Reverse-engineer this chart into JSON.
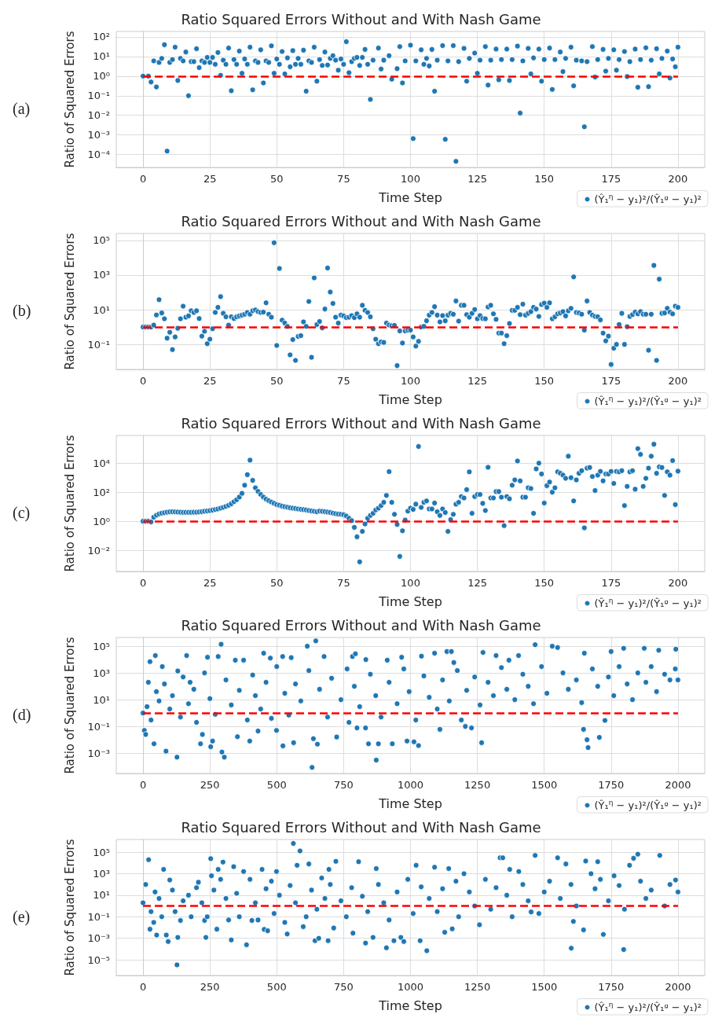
{
  "chart_data": [
    {
      "type": "scatter",
      "title": "Ratio Squared Errors Without and With Nash Game",
      "xlabel": "Time Step",
      "ylabel": "Ratio of Squared Errors",
      "annotations": [
        "(a)"
      ],
      "log": "y",
      "grid": true,
      "legend": "bottom right",
      "marker": "circle",
      "xlim": [
        -10,
        210
      ],
      "xticks": [
        0,
        25,
        50,
        75,
        100,
        125,
        150,
        175,
        200
      ],
      "ylim": [
        2.2e-05,
        190
      ],
      "yticks": [
        {
          "value": 0.0001,
          "label": "10⁻⁴"
        },
        {
          "value": 0.001,
          "label": "10⁻³"
        },
        {
          "value": 0.01,
          "label": "10⁻²"
        },
        {
          "value": 0.1,
          "label": "10⁻¹"
        },
        {
          "value": 1,
          "label": "10⁰"
        },
        {
          "value": 10,
          "label": "10¹"
        },
        {
          "value": 100,
          "label": "10²"
        }
      ],
      "ref_lines": [
        {
          "axis": "y",
          "value": 1,
          "color": "#ff0000",
          "line_style": "dashed"
        }
      ],
      "series": [
        {
          "name": "(Ŷ₁$^{η}$ − y₁)²/(Ŷ₁ᵍ − y₁)²",
          "color": "#1f77b4",
          "x": [
            0,
            2,
            3,
            4,
            5,
            6,
            7,
            8,
            9,
            10,
            11,
            12,
            13,
            14,
            15,
            16,
            17,
            18,
            19,
            20,
            21,
            22,
            23,
            24,
            25,
            26,
            27,
            28,
            29,
            30,
            31,
            32,
            33,
            34,
            35,
            36,
            37,
            38,
            39,
            40,
            41,
            42,
            43,
            44,
            45,
            46,
            47,
            48,
            49,
            50,
            51,
            52,
            53,
            54,
            55,
            56,
            57,
            58,
            59,
            60,
            61,
            62,
            63,
            64,
            65,
            66,
            67,
            68,
            69,
            70,
            71,
            72,
            73,
            74,
            75,
            76,
            77,
            78,
            79,
            80,
            81,
            82,
            83,
            84,
            85,
            86,
            88,
            89,
            90,
            92,
            93,
            95,
            96,
            97,
            98,
            100,
            101,
            102,
            104,
            105,
            106,
            107,
            108,
            109,
            110,
            112,
            113,
            114,
            116,
            117,
            118,
            120,
            121,
            122,
            124,
            125,
            126,
            128,
            129,
            130,
            132,
            133,
            134,
            136,
            137,
            138,
            140,
            141,
            142,
            144,
            145,
            146,
            148,
            149,
            150,
            152,
            153,
            154,
            156,
            157,
            158,
            160,
            161,
            162,
            164,
            165,
            166,
            168,
            169,
            170,
            172,
            173,
            174,
            176,
            177,
            178,
            180,
            181,
            182,
            184,
            185,
            186,
            188,
            189,
            190,
            192,
            193,
            194,
            196,
            197,
            198,
            199,
            200
          ],
          "values": [
            1,
            1,
            0.5,
            6,
            0.28,
            5,
            8,
            40,
            0.00015,
            5,
            7,
            30,
            0.6,
            8,
            6,
            17,
            0.1,
            5.5,
            5.5,
            25,
            2.7,
            6,
            5,
            9,
            5,
            9,
            4,
            16,
            1.1,
            6.5,
            4,
            27,
            0.18,
            7,
            4,
            19,
            1.4,
            7.5,
            4,
            30,
            0.2,
            6,
            5,
            22,
            0.45,
            6,
            5,
            35,
            1.4,
            7.5,
            4,
            18,
            1.3,
            8.5,
            3,
            20,
            4,
            8,
            4,
            21,
            0.17,
            6,
            5,
            30,
            0.55,
            7,
            3.5,
            17,
            3.7,
            8,
            11,
            6.5,
            2,
            7.5,
            4,
            57,
            1.5,
            5.5,
            8,
            9,
            3.5,
            9,
            23,
            4,
            0.065,
            6.5,
            27,
            2.3,
            6.5,
            11,
            0.7,
            2.4,
            32,
            0.45,
            6,
            38,
            0.00065,
            6,
            22,
            4,
            8,
            3.3,
            23,
            0.17,
            6.5,
            36,
            0.0006,
            6,
            36,
            4.5e-05,
            5.5,
            26,
            0.55,
            8,
            15,
            1.4,
            6.5,
            32,
            0.35,
            6.5,
            24,
            0.65,
            7,
            24,
            0.6,
            7,
            34,
            0.013,
            6,
            26,
            1.3,
            8.5,
            24,
            0.55,
            7,
            27,
            0.21,
            7,
            17,
            1.7,
            8,
            30,
            0.32,
            6.5,
            6,
            0.0026,
            5.5,
            32,
            0.9,
            7,
            23,
            1.8,
            8,
            22,
            2,
            7,
            18,
            0.95,
            5.5,
            24,
            0.27,
            7,
            28,
            0.29,
            6.5,
            25,
            1.3,
            8,
            19,
            0.8,
            7.5,
            3,
            30
          ]
        }
      ]
    },
    {
      "type": "scatter",
      "title": "Ratio Squared Errors Without and With Nash Game",
      "xlabel": "Time Step",
      "ylabel": "Ratio of Squared Errors",
      "annotations": [
        "(b)"
      ],
      "log": "y",
      "grid": true,
      "legend": "bottom right",
      "marker": "circle",
      "xlim": [
        -10,
        210
      ],
      "xticks": [
        0,
        25,
        50,
        75,
        100,
        125,
        150,
        175,
        200
      ],
      "ylim": [
        0.0036,
        250000
      ],
      "yticks": [
        {
          "value": 0.1,
          "label": "10⁻¹"
        },
        {
          "value": 10,
          "label": "10¹"
        },
        {
          "value": 1000,
          "label": "10³"
        },
        {
          "value": 100000,
          "label": "10⁵"
        }
      ],
      "ref_lines": [
        {
          "axis": "y",
          "value": 1,
          "color": "#ff0000",
          "line_style": "dashed"
        }
      ],
      "series": [
        {
          "name": "(Ŷ₁$^{η}$ − y₁)²/(Ŷ₁ᵍ − y₁)²",
          "color": "#1f77b4",
          "x": [
            0,
            1,
            2,
            3,
            4,
            5,
            6,
            7,
            8,
            9,
            10,
            11,
            12,
            13,
            14,
            15,
            16,
            17,
            18,
            19,
            20,
            21,
            22,
            23,
            24,
            25,
            26,
            27,
            28,
            29,
            30,
            31,
            32,
            33,
            34,
            35,
            36,
            37,
            38,
            39,
            40,
            41,
            42,
            43,
            44,
            45,
            46,
            47,
            48,
            49,
            50,
            51,
            52,
            53,
            54,
            55,
            56,
            57,
            58,
            59,
            60,
            61,
            62,
            63,
            64,
            65,
            66,
            67,
            68,
            69,
            70,
            71,
            72,
            73,
            74,
            75,
            76,
            77,
            78,
            79,
            80,
            81,
            82,
            83,
            84,
            85,
            86,
            87,
            88,
            89,
            90,
            91,
            92,
            93,
            94,
            95,
            96,
            97,
            98,
            99,
            100,
            101,
            102,
            103,
            104,
            105,
            106,
            107,
            108,
            109,
            110,
            111,
            112,
            113,
            114,
            115,
            116,
            117,
            118,
            119,
            120,
            121,
            122,
            123,
            124,
            125,
            126,
            127,
            128,
            129,
            130,
            131,
            132,
            133,
            134,
            135,
            136,
            137,
            138,
            139,
            140,
            141,
            142,
            143,
            144,
            145,
            146,
            147,
            148,
            149,
            150,
            151,
            152,
            153,
            154,
            155,
            156,
            157,
            158,
            159,
            160,
            161,
            162,
            163,
            164,
            165,
            166,
            167,
            168,
            169,
            170,
            171,
            172,
            173,
            174,
            175,
            176,
            177,
            178,
            179,
            180,
            181,
            182,
            183,
            184,
            185,
            186,
            187,
            188,
            189,
            190,
            191,
            192,
            193,
            194,
            195,
            196,
            197,
            198,
            199,
            200
          ],
          "values": [
            1,
            1,
            1,
            1,
            1.3,
            5,
            38,
            6.5,
            3,
            0.23,
            0.5,
            0.05,
            0.27,
            0.85,
            3,
            16,
            3.7,
            4.4,
            8.7,
            7,
            8.7,
            3.1,
            0.3,
            0.57,
            0.11,
            0.2,
            0.8,
            7,
            13.7,
            57,
            6.2,
            3.9,
            1.3,
            3.9,
            3.1,
            3.9,
            4.4,
            4.9,
            5.5,
            7,
            5.5,
            8.7,
            9.7,
            7.8,
            7,
            7.3,
            25,
            5.5,
            3.7,
            73000,
            0.087,
            2400,
            2.5,
            1.7,
            1.1,
            0.025,
            0.19,
            0.012,
            0.29,
            0.32,
            2,
            1.1,
            30,
            0.018,
            690,
            1.4,
            2.1,
            0.9,
            11,
            2550,
            105,
            23,
            3.7,
            1.7,
            4.9,
            4.4,
            3.5,
            3.7,
            4.6,
            3.5,
            5.8,
            3.7,
            18,
            9.2,
            7,
            3.9,
            0.8,
            0.2,
            0.11,
            0.14,
            0.13,
            1.7,
            1.3,
            1.2,
            1.25,
            0.006,
            0.6,
            0.12,
            0.6,
            0.67,
            0.67,
            0.27,
            0.08,
            0.15,
            1,
            1.1,
            2.3,
            4.9,
            7,
            15,
            4.9,
            2,
            4.6,
            2.3,
            4.9,
            6.2,
            5.5,
            32,
            2.2,
            18,
            18,
            5.2,
            3.7,
            6.2,
            10.3,
            3,
            4.6,
            3.1,
            3,
            14.5,
            18,
            5.8,
            2.8,
            0.45,
            0.45,
            0.11,
            0.32,
            1.6,
            9.2,
            9.2,
            13.7,
            5.2,
            21,
            4.9,
            6.2,
            7.8,
            13.7,
            10.9,
            4.1,
            20,
            24,
            13.7,
            25,
            3,
            3.9,
            5.8,
            6.5,
            7.8,
            4.4,
            8.7,
            12,
            780,
            7,
            6.5,
            5.5,
            0.67,
            32,
            7,
            4.9,
            4.1,
            3.9,
            2.6,
            0.45,
            0.16,
            0.3,
            0.007,
            0.06,
            0.1,
            1.4,
            6.2,
            0.1,
            1.05,
            4.1,
            5.2,
            7.3,
            5.8,
            7.8,
            5.5,
            5.5,
            0.046,
            5.5,
            3600,
            0.012,
            580,
            6.2,
            6.5,
            12,
            7.3,
            5.8,
            16,
            13.7
          ]
        }
      ]
    },
    {
      "type": "scatter",
      "title": "Ratio Squared Errors Without and With Nash Game",
      "xlabel": "Time Step",
      "ylabel": "Ratio of Squared Errors",
      "annotations": [
        "(c)"
      ],
      "log": "y",
      "grid": true,
      "legend": "bottom right",
      "marker": "circle",
      "xlim": [
        -10,
        210
      ],
      "xticks": [
        0,
        25,
        50,
        75,
        100,
        125,
        150,
        175,
        200
      ],
      "ylim": [
        0.00035,
        800000
      ],
      "yticks": [
        {
          "value": 0.01,
          "label": "10⁻²"
        },
        {
          "value": 1,
          "label": "10⁰"
        },
        {
          "value": 100,
          "label": "10²"
        },
        {
          "value": 10000,
          "label": "10⁴"
        }
      ],
      "ref_lines": [
        {
          "axis": "y",
          "value": 1,
          "color": "#ff0000",
          "line_style": "dashed"
        }
      ],
      "series": [
        {
          "name": "(Ŷ₁$^{η}$ − y₁)²/(Ŷ₁ᵍ − y₁)²",
          "color": "#1f77b4",
          "x": [
            0,
            1,
            2,
            3,
            4,
            5,
            6,
            7,
            8,
            9,
            10,
            11,
            12,
            13,
            14,
            15,
            16,
            17,
            18,
            19,
            20,
            21,
            22,
            23,
            24,
            25,
            26,
            27,
            28,
            29,
            30,
            31,
            32,
            33,
            34,
            35,
            36,
            37,
            38,
            39,
            40,
            41,
            42,
            43,
            44,
            45,
            46,
            47,
            48,
            49,
            50,
            51,
            52,
            53,
            54,
            55,
            56,
            57,
            58,
            59,
            60,
            61,
            62,
            63,
            64,
            65,
            66,
            67,
            68,
            69,
            70,
            71,
            72,
            73,
            74,
            75,
            76,
            77,
            78,
            79,
            80,
            81,
            82,
            83,
            84,
            85,
            86,
            87,
            88,
            89,
            90,
            91,
            92,
            93,
            94,
            95,
            96,
            97,
            98,
            99,
            100,
            101,
            102,
            103,
            104,
            105,
            106,
            107,
            108,
            109,
            110,
            111,
            112,
            113,
            114,
            115,
            116,
            117,
            118,
            119,
            120,
            121,
            122,
            123,
            124,
            125,
            126,
            127,
            128,
            129,
            130,
            131,
            132,
            133,
            134,
            135,
            136,
            137,
            138,
            139,
            140,
            141,
            142,
            143,
            144,
            145,
            146,
            147,
            148,
            149,
            150,
            151,
            152,
            153,
            154,
            155,
            156,
            157,
            158,
            159,
            160,
            161,
            162,
            163,
            164,
            165,
            166,
            167,
            168,
            169,
            170,
            171,
            172,
            173,
            174,
            175,
            176,
            177,
            178,
            179,
            180,
            181,
            182,
            183,
            184,
            185,
            186,
            187,
            188,
            189,
            190,
            191,
            192,
            193,
            194,
            195,
            196,
            197,
            198,
            199,
            200
          ],
          "values": [
            1,
            1,
            1,
            0.9,
            1.9,
            2.6,
            3.2,
            3.6,
            3.9,
            4.2,
            4.4,
            4.5,
            4.4,
            4.3,
            4.2,
            4.1,
            4.1,
            4.1,
            4.1,
            4.2,
            4.2,
            4.4,
            4.6,
            4.9,
            5.1,
            5.4,
            5.9,
            6.4,
            7,
            8,
            9,
            10.5,
            12.6,
            16,
            22,
            30,
            46,
            83,
            300,
            1600,
            16000,
            650,
            200,
            113,
            70,
            46,
            33,
            26,
            21,
            17,
            14,
            12.5,
            11,
            10,
            9.2,
            8.5,
            8,
            7.5,
            7,
            6.6,
            6.3,
            6,
            5.5,
            5.1,
            4.8,
            4.5,
            5,
            4.8,
            4.6,
            4.3,
            4,
            3.6,
            3.3,
            3.1,
            3,
            2.8,
            2.3,
            1.6,
            1.1,
            0.38,
            0.085,
            0.0016,
            0.2,
            0.65,
            1.6,
            2.5,
            3.5,
            6,
            8,
            12,
            20,
            60,
            2600,
            20,
            3,
            0.6,
            0.0038,
            0.22,
            1.2,
            5,
            8,
            6.5,
            15,
            140000,
            9,
            20,
            25,
            7,
            7,
            18,
            4.5,
            2.5,
            7,
            4,
            0.2,
            1.3,
            3,
            15,
            20,
            50,
            40,
            150,
            2500,
            3.5,
            50,
            70,
            70,
            17,
            5.5,
            5200,
            40,
            40,
            110,
            110,
            45,
            0.5,
            50,
            35,
            300,
            700,
            14000,
            600,
            45,
            45,
            200,
            180,
            3.5,
            4000,
            10000,
            1800,
            18,
            280,
            500,
            100,
            200,
            2500,
            2000,
            1500,
            900,
            30000,
            1000,
            25,
            700,
            2000,
            3000,
            0.35,
            4500,
            5000,
            1200,
            130,
            1500,
            2700,
            600,
            1800,
            1800,
            2700,
            400,
            2700,
            2500,
            3000,
            12,
            250,
            2500,
            3000,
            160,
            100000,
            40000,
            250,
            900,
            4500,
            30000,
            200000,
            2000,
            5500,
            5000,
            60,
            2500,
            1500,
            15000,
            14,
            2800
          ]
        }
      ]
    },
    {
      "type": "scatter",
      "title": "Ratio Squared Errors Without and With Nash Game",
      "xlabel": "Time Step",
      "ylabel": "Ratio of Squared Errors",
      "annotations": [
        "(d)"
      ],
      "log": "y",
      "grid": true,
      "legend": "bottom right",
      "marker": "circle",
      "xlim": [
        -100,
        2100
      ],
      "xticks": [
        0,
        250,
        500,
        750,
        1000,
        1250,
        1500,
        1750,
        2000
      ],
      "ylim": [
        3e-05,
        450000
      ],
      "yticks": [
        {
          "value": 0.001,
          "label": "10⁻³"
        },
        {
          "value": 0.1,
          "label": "10⁻¹"
        },
        {
          "value": 10,
          "label": "10¹"
        },
        {
          "value": 1000,
          "label": "10³"
        },
        {
          "value": 100000,
          "label": "10⁵"
        }
      ],
      "ref_lines": [
        {
          "axis": "y",
          "value": 1,
          "color": "#ff0000",
          "line_style": "dashed"
        }
      ],
      "series": [
        {
          "name": "(Ŷ₁$^{η}$ − y₁)²/(Ŷ₁ᵍ − y₁)²",
          "color": "#1f77b4",
          "x": [
            0,
            5,
            10,
            15,
            20,
            26,
            30,
            41,
            46,
            50,
            60,
            72,
            80,
            86,
            100,
            110,
            127,
            130,
            140,
            150,
            163,
            170,
            176,
            190,
            200,
            215,
            222,
            230,
            241,
            250,
            253,
            260,
            270,
            281,
            292,
            295,
            304,
            310,
            330,
            345,
            353,
            360,
            376,
            390,
            399,
            410,
            420,
            430,
            440,
            451,
            460,
            476,
            480,
            499,
            500,
            522,
            523,
            530,
            545,
            554,
            563,
            570,
            590,
            614,
            620,
            632,
            637,
            646,
            652,
            660,
            677,
            690,
            705,
            724,
            740,
            763,
            770,
            783,
            790,
            794,
            800,
            810,
            832,
            833,
            843,
            850,
            870,
            872,
            880,
            890,
            913,
            920,
            932,
            950,
            967,
            975,
            987,
            995,
            1013,
            1020,
            1030,
            1041,
            1050,
            1070,
            1090,
            1100,
            1110,
            1120,
            1136,
            1145,
            1153,
            1162,
            1175,
            1190,
            1205,
            1210,
            1228,
            1240,
            1260,
            1266,
            1271,
            1290,
            1310,
            1320,
            1340,
            1360,
            1368,
            1390,
            1404,
            1420,
            1440,
            1460,
            1466,
            1490,
            1510,
            1530,
            1550,
            1570,
            1590,
            1620,
            1640,
            1647,
            1650,
            1660,
            1664,
            1680,
            1700,
            1706,
            1727,
            1740,
            1750,
            1760,
            1780,
            1797,
            1810,
            1830,
            1850,
            1874,
            1880,
            1900,
            1920,
            1928,
            1950,
            1970,
            1990,
            1992,
            2000
          ],
          "values": [
            1,
            0.05,
            0.025,
            3,
            200,
            7000,
            0.3,
            0.005,
            20000,
            40,
            8,
            3000,
            150,
            0.0014,
            2,
            20,
            0.0005,
            1400,
            0.5,
            500,
            20000,
            5,
            200,
            60,
            0.2,
            0.005,
            0.025,
            1000,
            15000,
            12,
            0.003,
            0.008,
            0.8,
            17000,
            140000,
            0.0012,
            0.0005,
            300,
            4,
            9000,
            0.017,
            50,
            9000,
            0.3,
            0.008,
            700,
            20,
            0.045,
            2,
            30000,
            200,
            13000,
            0.4,
            0.05,
            3000,
            17000,
            0.0035,
            30,
            0.7,
            14000,
            0.006,
            150,
            8,
            100000,
            1500,
            8.5e-05,
            0.012,
            250000,
            0.0047,
            60,
            17000,
            0.5,
            400,
            0.016,
            10,
            2000,
            0.2,
            17000,
            100,
            27000,
            0.077,
            3,
            0.077,
            10000,
            0.005,
            800,
            20,
            0.0003,
            0.005,
            0.5,
            9000,
            200,
            0.005,
            5,
            15000,
            2000,
            0.008,
            40,
            0.007,
            0.3,
            0.0037,
            18000,
            600,
            15,
            30000,
            2,
            0.06,
            300,
            40000,
            8,
            40000,
            6000,
            1500,
            0.3,
            0.1,
            50,
            0.077,
            500,
            4,
            0.006,
            34000,
            200,
            20,
            20000,
            2500,
            60,
            9000,
            10,
            20000,
            800,
            100,
            5,
            130000,
            3000,
            30,
            100000,
            80000,
            1000,
            60,
            300,
            6,
            0.06,
            30000,
            0.01,
            0.0026,
            2000,
            100,
            0.015,
            0.28,
            500,
            40000,
            20,
            3000,
            70000,
            150,
            10,
            1000,
            70000,
            200,
            3000,
            40,
            50000,
            800,
            300,
            2000,
            60000,
            300
          ]
        }
      ]
    },
    {
      "type": "scatter",
      "title": "Ratio Squared Errors Without and With Nash Game",
      "xlabel": "Time Step",
      "ylabel": "Ratio of Squared Errors",
      "annotations": [
        "(e)"
      ],
      "log": "y",
      "grid": true,
      "legend": "bottom right",
      "marker": "circle",
      "xlim": [
        -100,
        2100
      ],
      "xticks": [
        0,
        250,
        500,
        750,
        1000,
        1250,
        1500,
        1750,
        2000
      ],
      "ylim": [
        3.5e-07,
        1500000
      ],
      "yticks": [
        {
          "value": 1e-05,
          "label": "10⁻⁵"
        },
        {
          "value": 0.001,
          "label": "10⁻³"
        },
        {
          "value": 0.1,
          "label": "10⁻¹"
        },
        {
          "value": 10,
          "label": "10¹"
        },
        {
          "value": 1000,
          "label": "10³"
        },
        {
          "value": 100000,
          "label": "10⁵"
        }
      ],
      "ref_lines": [
        {
          "axis": "y",
          "value": 1,
          "color": "#ff0000",
          "line_style": "dashed"
        }
      ],
      "series": [
        {
          "name": "(Ŷ₁$^{η}$ − y₁)²/(Ŷ₁ᵍ − y₁)²",
          "color": "#1f77b4",
          "x": [
            0,
            10,
            21,
            26,
            30,
            40,
            45,
            51,
            60,
            70,
            77,
            87,
            94,
            100,
            110,
            120,
            127,
            130,
            140,
            150,
            170,
            180,
            200,
            207,
            220,
            230,
            235,
            240,
            253,
            256,
            265,
            276,
            281,
            290,
            299,
            310,
            320,
            330,
            339,
            350,
            360,
            376,
            387,
            400,
            407,
            420,
            430,
            445,
            453,
            460,
            466,
            480,
            490,
            499,
            510,
            530,
            539,
            550,
            562,
            570,
            576,
            587,
            599,
            610,
            620,
            630,
            643,
            650,
            657,
            668,
            680,
            692,
            695,
            700,
            713,
            721,
            740,
            760,
            780,
            785,
            806,
            820,
            832,
            840,
            860,
            872,
            880,
            900,
            910,
            920,
            938,
            950,
            964,
            975,
            990,
            1010,
            1021,
            1036,
            1040,
            1061,
            1070,
            1090,
            1100,
            1120,
            1128,
            1143,
            1156,
            1170,
            1180,
            1200,
            1220,
            1240,
            1258,
            1280,
            1300,
            1320,
            1335,
            1345,
            1360,
            1371,
            1380,
            1405,
            1420,
            1440,
            1451,
            1466,
            1480,
            1500,
            1520,
            1550,
            1560,
            1581,
            1600,
            1601,
            1609,
            1620,
            1647,
            1655,
            1675,
            1690,
            1700,
            1710,
            1721,
            1740,
            1761,
            1780,
            1797,
            1800,
            1819,
            1834,
            1850,
            1860,
            1880,
            1900,
            1932,
            1950,
            1970,
            1991,
            2000
          ],
          "values": [
            2,
            100,
            20000,
            0.007,
            0.3,
            0.03,
            20,
            0.002,
            5,
            0.1,
            2500,
            0.002,
            0.0005,
            260,
            30,
            0.3,
            3.4e-06,
            0.0012,
            0.045,
            3,
            10,
            0.1,
            50,
            160,
            2,
            0.045,
            0.0012,
            0.1,
            25000,
            640,
            30,
            0.007,
            2500,
            300,
            12000,
            5,
            0.05,
            0.0007,
            4500,
            15,
            0.1,
            1600,
            0.00025,
            300,
            0.045,
            2,
            0.05,
            2500,
            0.0067,
            40,
            0.005,
            200,
            0.2,
            1600,
            10,
            0.03,
            0.0025,
            80,
            640000,
            2,
            6000,
            130000,
            0.012,
            0.1,
            8000,
            30,
            0.0006,
            0.5,
            0.001,
            400,
            5,
            0.0006,
            2500,
            100,
            0.009,
            14000,
            3,
            0.1,
            50,
            0.003,
            13000,
            8,
            0.00036,
            0.3,
            0.0012,
            3000,
            100,
            2,
            0.00013,
            0.05,
            0.0006,
            20,
            0.0012,
            0.0005,
            300,
            0.2,
            6000,
            0.0006,
            60,
            7e-05,
            5,
            4000,
            0.3,
            40,
            0.0036,
            3000,
            0.0075,
            200,
            0.1,
            1000,
            20,
            1,
            0.018,
            300,
            0.5,
            50,
            30000,
            30000,
            10,
            2500,
            0.1,
            1600,
            100,
            3,
            0.28,
            50000,
            0.2,
            20,
            200,
            30000,
            5,
            8000,
            100,
            0.00012,
            0.037,
            1,
            0.006,
            15000,
            1000,
            40,
            13000,
            300,
            0.0023,
            3,
            640,
            80,
            9e-05,
            0.5,
            6000,
            27000,
            65000,
            200,
            5,
            30,
            50000,
            1,
            100,
            260,
            20
          ]
        }
      ]
    }
  ]
}
